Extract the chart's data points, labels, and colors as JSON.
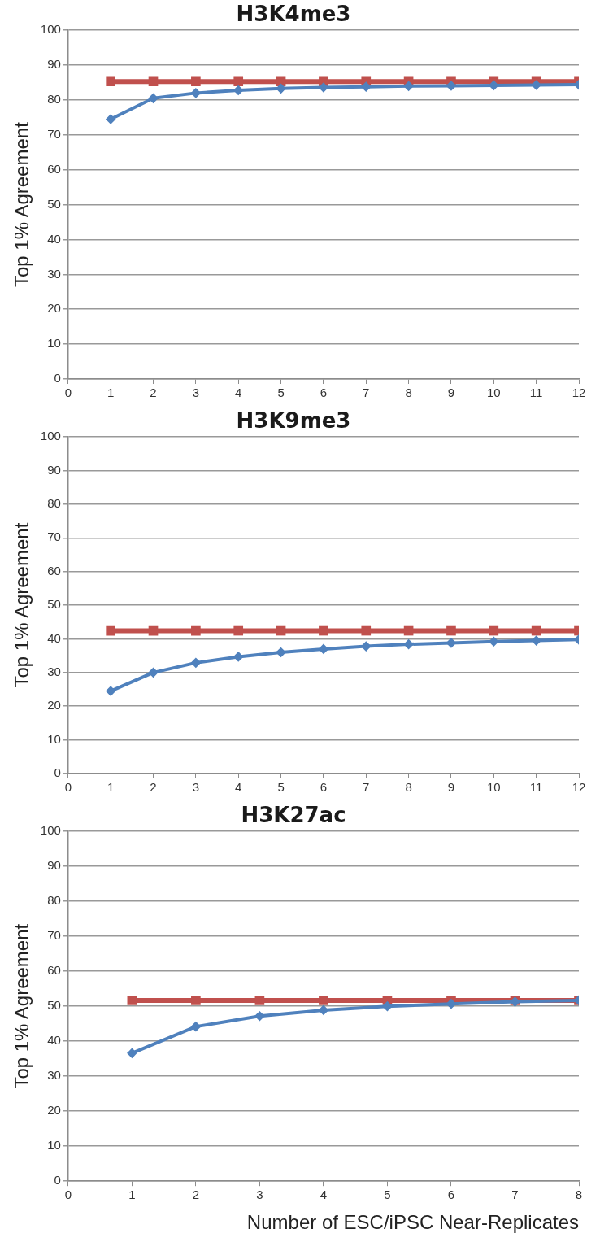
{
  "chart_data": [
    {
      "type": "line",
      "title": "H3K4me3",
      "ylabel": "Top 1% Agreement",
      "x": [
        1,
        2,
        3,
        4,
        5,
        6,
        7,
        8,
        9,
        10,
        11,
        12
      ],
      "xlim": [
        0,
        12
      ],
      "xticks": [
        0,
        1,
        2,
        3,
        4,
        5,
        6,
        7,
        8,
        9,
        10,
        11,
        12
      ],
      "ylim": [
        0,
        100
      ],
      "yticks": [
        0,
        10,
        20,
        30,
        40,
        50,
        60,
        70,
        80,
        90,
        100
      ],
      "grid": "y",
      "legend": false,
      "line_style": "solid",
      "series": [
        {
          "color": "#c0504d",
          "marker": "square",
          "values": [
            85.3,
            85.3,
            85.3,
            85.3,
            85.3,
            85.3,
            85.3,
            85.3,
            85.3,
            85.3,
            85.3,
            85.3
          ]
        },
        {
          "color": "#4f81bd",
          "marker": "diamond",
          "values": [
            74.5,
            80.5,
            82,
            82.8,
            83.3,
            83.6,
            83.8,
            84,
            84.1,
            84.2,
            84.3,
            84.4
          ]
        }
      ]
    },
    {
      "type": "line",
      "title": "H3K9me3",
      "ylabel": "Top 1% Agreement",
      "x": [
        1,
        2,
        3,
        4,
        5,
        6,
        7,
        8,
        9,
        10,
        11,
        12
      ],
      "xlim": [
        0,
        12
      ],
      "xticks": [
        0,
        1,
        2,
        3,
        4,
        5,
        6,
        7,
        8,
        9,
        10,
        11,
        12
      ],
      "ylim": [
        0,
        100
      ],
      "yticks": [
        0,
        10,
        20,
        30,
        40,
        50,
        60,
        70,
        80,
        90,
        100
      ],
      "grid": "y",
      "legend": false,
      "line_style": "solid",
      "series": [
        {
          "color": "#c0504d",
          "marker": "square",
          "values": [
            42.4,
            42.4,
            42.4,
            42.4,
            42.4,
            42.4,
            42.4,
            42.4,
            42.4,
            42.4,
            42.4,
            42.4
          ]
        },
        {
          "color": "#4f81bd",
          "marker": "diamond",
          "values": [
            24.5,
            30,
            32.9,
            34.7,
            36,
            37,
            37.8,
            38.4,
            38.8,
            39.2,
            39.5,
            39.8
          ]
        }
      ]
    },
    {
      "type": "line",
      "title": "H3K27ac",
      "ylabel": "Top 1% Agreement",
      "xlabel": "Number of ESC/iPSC Near-Replicates",
      "x": [
        1,
        2,
        3,
        4,
        5,
        6,
        7,
        8
      ],
      "xlim": [
        0,
        8
      ],
      "xticks": [
        0,
        1,
        2,
        3,
        4,
        5,
        6,
        7,
        8
      ],
      "ylim": [
        0,
        100
      ],
      "yticks": [
        0,
        10,
        20,
        30,
        40,
        50,
        60,
        70,
        80,
        90,
        100
      ],
      "grid": "y",
      "legend": false,
      "line_style": "solid",
      "series": [
        {
          "color": "#c0504d",
          "marker": "square",
          "values": [
            51.7,
            51.7,
            51.7,
            51.7,
            51.7,
            51.7,
            51.7,
            51.7
          ]
        },
        {
          "color": "#4f81bd",
          "marker": "diamond",
          "values": [
            36.6,
            44.2,
            47.2,
            48.9,
            50,
            50.7,
            51.3,
            51.7
          ]
        }
      ]
    }
  ]
}
